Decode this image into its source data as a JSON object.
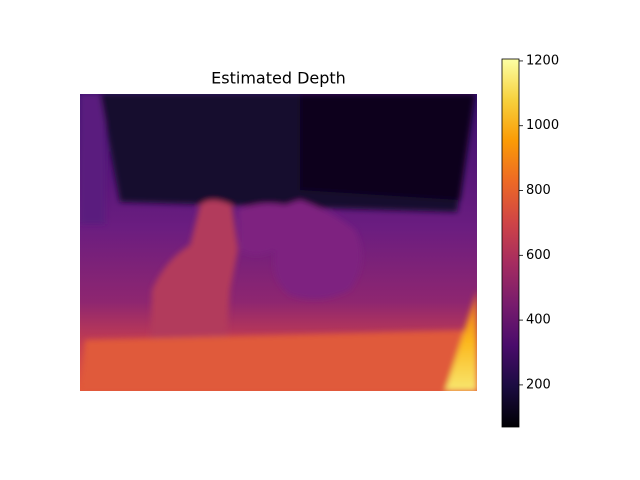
{
  "chart_data": {
    "type": "image",
    "title": "Estimated Depth",
    "colormap": "inferno",
    "clim": [
      70,
      1206
    ],
    "cticks": [
      200,
      400,
      600,
      800,
      1000,
      1200
    ]
  }
}
